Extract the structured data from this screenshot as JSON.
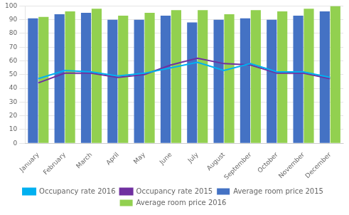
{
  "chart_data": {
    "type": "bar",
    "categories": [
      "January",
      "February",
      "March",
      "April",
      "May",
      "June",
      "July",
      "August",
      "September",
      "October",
      "November",
      "December"
    ],
    "series": [
      {
        "name": "Average room price 2015",
        "type": "bar",
        "color": "#4472c4",
        "values": [
          91,
          94,
          95,
          90,
          90,
          93,
          88,
          90,
          91,
          90,
          93,
          96
        ]
      },
      {
        "name": "Average room price 2016",
        "type": "bar",
        "color": "#92d050",
        "values": [
          92,
          96,
          98,
          93,
          95,
          97,
          97,
          94,
          97,
          96,
          98,
          100
        ]
      },
      {
        "name": "Occupancy rate 2016",
        "type": "line",
        "color": "#00b0f0",
        "values": [
          47,
          53,
          52,
          49,
          51,
          55,
          59,
          53,
          58,
          52,
          52,
          48
        ]
      },
      {
        "name": "Occupancy rate 2015",
        "type": "line",
        "color": "#7030a0",
        "values": [
          44,
          51,
          51,
          48,
          50,
          57,
          62,
          58,
          57,
          51,
          51,
          47
        ]
      }
    ],
    "ylim": [
      0,
      100
    ],
    "yticks": [
      0,
      10,
      20,
      30,
      40,
      50,
      60,
      70,
      80,
      90,
      100
    ],
    "grid": "y",
    "legend": "bottom"
  }
}
